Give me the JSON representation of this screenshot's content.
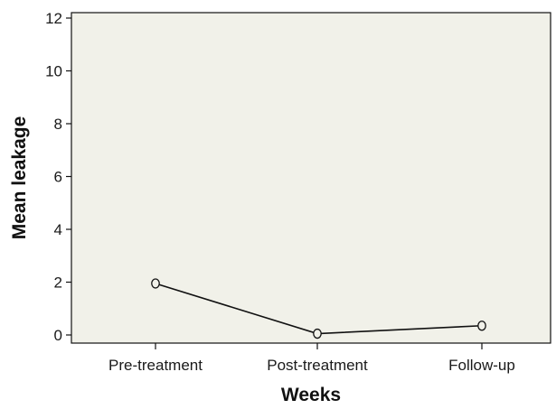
{
  "chart_data": {
    "type": "line",
    "categories": [
      "Pre-treatment",
      "Post-treatment",
      "Follow-up"
    ],
    "series": [
      {
        "values": [
          1.95,
          0.05,
          0.35
        ]
      }
    ],
    "xlabel": "Weeks",
    "ylabel": "Mean leakage",
    "ylim": [
      0,
      12
    ],
    "yticks": [
      0,
      2,
      4,
      6,
      8,
      10,
      12
    ],
    "grid": false,
    "marker": "open-circle",
    "colors": {
      "plot_background": "#f1f1e9",
      "line": "#111111"
    }
  }
}
